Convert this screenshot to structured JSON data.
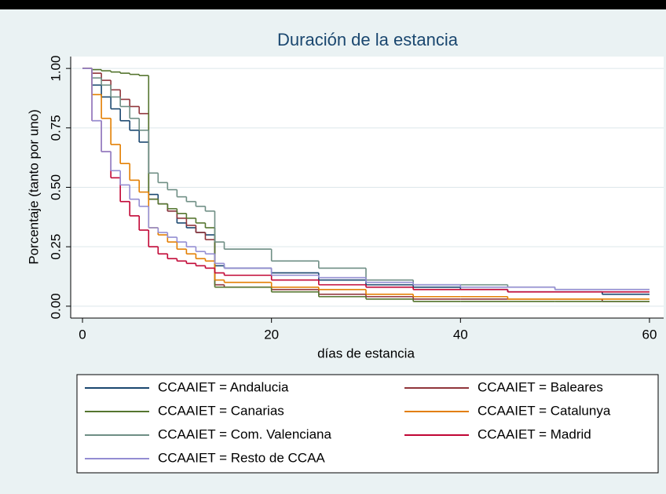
{
  "chart_data": {
    "type": "step",
    "title": "Duración de la estancia",
    "xlabel": "días de estancia",
    "ylabel": "Porcentaje (tanto por uno)",
    "x": [
      0,
      1,
      2,
      3,
      4,
      5,
      6,
      7,
      8,
      9,
      10,
      11,
      12,
      13,
      14,
      15,
      20,
      25,
      30,
      35,
      40,
      45,
      50,
      55,
      60
    ],
    "xlim": [
      -1.25,
      61.5
    ],
    "ylim": [
      -0.05,
      1.05
    ],
    "xticks": [
      0,
      20,
      40,
      60
    ],
    "yticks": [
      {
        "value": 0,
        "label": "0.00"
      },
      {
        "value": 0.25,
        "label": "0.25"
      },
      {
        "value": 0.5,
        "label": "0.50"
      },
      {
        "value": 0.75,
        "label": "0.75"
      },
      {
        "value": 1,
        "label": "1.00"
      }
    ],
    "grid": true,
    "legend": "bottom",
    "series": [
      {
        "name": "CCAAIET = Andalucia",
        "color": "#1a476f",
        "values": [
          1,
          0.93,
          0.88,
          0.83,
          0.78,
          0.74,
          0.69,
          0.47,
          0.43,
          0.4,
          0.35,
          0.33,
          0.31,
          0.3,
          0.17,
          0.16,
          0.14,
          0.11,
          0.09,
          0.08,
          0.07,
          0.06,
          0.06,
          0.05,
          0.05
        ]
      },
      {
        "name": "CCAAIET = Baleares",
        "color": "#90353b",
        "values": [
          1,
          0.98,
          0.95,
          0.91,
          0.87,
          0.84,
          0.81,
          0.45,
          0.43,
          0.4,
          0.37,
          0.34,
          0.31,
          0.28,
          0.09,
          0.08,
          0.07,
          0.05,
          0.04,
          0.03,
          0.03,
          0.03,
          0.03,
          0.02,
          0.02
        ]
      },
      {
        "name": "CCAAIET = Canarias",
        "color": "#55752f",
        "values": [
          1,
          0.995,
          0.99,
          0.985,
          0.98,
          0.975,
          0.97,
          0.45,
          0.43,
          0.41,
          0.39,
          0.37,
          0.35,
          0.33,
          0.08,
          0.08,
          0.06,
          0.04,
          0.03,
          0.02,
          0.02,
          0.02,
          0.02,
          0.02,
          0.02
        ]
      },
      {
        "name": "CCAAIET = Catalunya",
        "color": "#e37e00",
        "values": [
          1,
          0.89,
          0.79,
          0.68,
          0.6,
          0.53,
          0.48,
          0.33,
          0.3,
          0.27,
          0.24,
          0.22,
          0.2,
          0.19,
          0.11,
          0.1,
          0.08,
          0.07,
          0.05,
          0.04,
          0.04,
          0.03,
          0.03,
          0.03,
          0.03
        ]
      },
      {
        "name": "CCAAIET = Com. Valenciana",
        "color": "#6e8e84",
        "values": [
          1,
          0.96,
          0.93,
          0.88,
          0.84,
          0.79,
          0.74,
          0.56,
          0.52,
          0.49,
          0.46,
          0.44,
          0.42,
          0.4,
          0.27,
          0.24,
          0.19,
          0.16,
          0.11,
          0.09,
          0.09,
          0.08,
          0.07,
          0.07,
          0.07
        ]
      },
      {
        "name": "CCAAIET = Madrid",
        "color": "#c10534",
        "values": [
          1,
          0.78,
          0.65,
          0.54,
          0.44,
          0.38,
          0.32,
          0.25,
          0.22,
          0.2,
          0.19,
          0.18,
          0.17,
          0.16,
          0.14,
          0.13,
          0.11,
          0.09,
          0.08,
          0.07,
          0.07,
          0.06,
          0.06,
          0.06,
          0.06
        ]
      },
      {
        "name": "CCAAIET = Resto de CCAA",
        "color": "#938dd2",
        "values": [
          1,
          0.78,
          0.65,
          0.57,
          0.51,
          0.45,
          0.42,
          0.33,
          0.31,
          0.29,
          0.27,
          0.25,
          0.23,
          0.22,
          0.18,
          0.16,
          0.13,
          0.12,
          0.1,
          0.09,
          0.08,
          0.08,
          0.07,
          0.07,
          0.07
        ]
      }
    ]
  }
}
